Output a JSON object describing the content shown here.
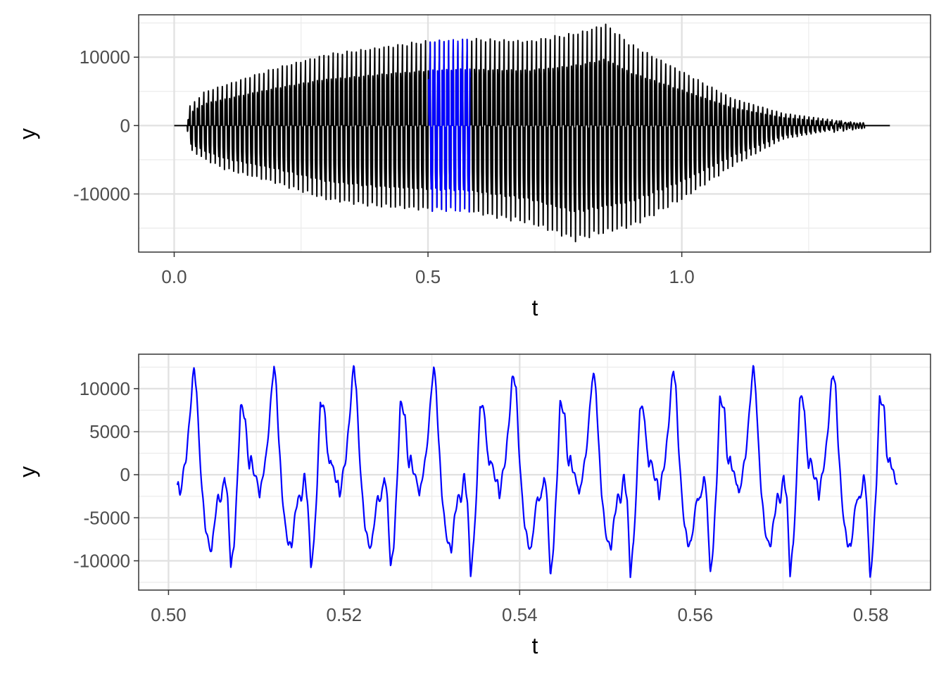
{
  "chart_data": [
    {
      "type": "line",
      "title": "",
      "xlabel": "t",
      "ylabel": "y",
      "xlim": [
        -0.07,
        1.49
      ],
      "ylim": [
        -18500,
        16200
      ],
      "x_ticks": [
        0.0,
        0.5,
        1.0
      ],
      "x_tick_labels": [
        "0.0",
        "0.5",
        "1.0"
      ],
      "y_ticks": [
        -10000,
        0,
        10000
      ],
      "y_tick_labels": [
        "-10000",
        "0",
        "10000"
      ],
      "grid": true,
      "legend": "none",
      "series": [
        {
          "color": "#000000",
          "description_of_shape": "speech-like oscillation from t=0.0 to t=1.41; silent until ~0.02, envelope grows to about +/-12000 near 0.45-0.55, peaks near +15000 around t=0.85 and -17000 around t=0.79, decays to near 0 by t=1.25, flat to 1.41",
          "envelope_upper": [
            [
              0.0,
              0
            ],
            [
              0.025,
              0
            ],
            [
              0.03,
              2800
            ],
            [
              0.06,
              5000
            ],
            [
              0.1,
              6000
            ],
            [
              0.2,
              8500
            ],
            [
              0.3,
              10500
            ],
            [
              0.4,
              11500
            ],
            [
              0.5,
              12500
            ],
            [
              0.58,
              12800
            ],
            [
              0.7,
              12500
            ],
            [
              0.8,
              13800
            ],
            [
              0.85,
              15000
            ],
            [
              0.9,
              12000
            ],
            [
              1.0,
              8000
            ],
            [
              1.1,
              4000
            ],
            [
              1.2,
              1800
            ],
            [
              1.3,
              800
            ],
            [
              1.36,
              0
            ],
            [
              1.41,
              0
            ]
          ],
          "envelope_lower": [
            [
              0.0,
              0
            ],
            [
              0.025,
              0
            ],
            [
              0.03,
              -3500
            ],
            [
              0.06,
              -5000
            ],
            [
              0.1,
              -6500
            ],
            [
              0.2,
              -8500
            ],
            [
              0.3,
              -11000
            ],
            [
              0.4,
              -12000
            ],
            [
              0.5,
              -12500
            ],
            [
              0.58,
              -12800
            ],
            [
              0.7,
              -14500
            ],
            [
              0.79,
              -17000
            ],
            [
              0.9,
              -15000
            ],
            [
              1.0,
              -11000
            ],
            [
              1.1,
              -6000
            ],
            [
              1.2,
              -2000
            ],
            [
              1.3,
              -600
            ],
            [
              1.36,
              0
            ],
            [
              1.41,
              0
            ]
          ]
        },
        {
          "color": "#0000ff",
          "description_of_shape": "highlighted segment t=0.501 to 0.583 (same waveform as bottom panel)",
          "x_range": [
            0.501,
            0.583
          ]
        }
      ]
    },
    {
      "type": "line",
      "title": "",
      "xlabel": "t",
      "ylabel": "y",
      "xlim": [
        0.4966,
        0.5868
      ],
      "ylim": [
        -13400,
        14000
      ],
      "x_ticks": [
        0.5,
        0.52,
        0.54,
        0.56,
        0.58
      ],
      "x_tick_labels": [
        "0.50",
        "0.52",
        "0.54",
        "0.56",
        "0.58"
      ],
      "y_ticks": [
        -10000,
        -5000,
        0,
        5000,
        10000
      ],
      "y_tick_labels": [
        "-10000",
        "-5000",
        "0",
        "5000",
        "10000"
      ],
      "grid": true,
      "legend": "none",
      "series": [
        {
          "color": "#0000ff",
          "x_start": 0.501,
          "x_end": 0.583,
          "period": 0.0091,
          "cycles": [
            {
              "t0": 0.5011,
              "peak1": 12300,
              "peak2": 8000,
              "trough1": -8900,
              "trough2": -10900
            },
            {
              "t0": 0.5102,
              "peak1": 12700,
              "peak2": 8500,
              "trough1": -8300,
              "trough2": -10700
            },
            {
              "t0": 0.5193,
              "peak1": 12800,
              "peak2": 8300,
              "trough1": -8400,
              "trough2": -11000
            },
            {
              "t0": 0.5284,
              "peak1": 12500,
              "peak2": 8300,
              "trough1": -8800,
              "trough2": -11600
            },
            {
              "t0": 0.5375,
              "peak1": 11500,
              "peak2": 8300,
              "trough1": -8800,
              "trough2": -12200
            },
            {
              "t0": 0.5466,
              "peak1": 11600,
              "peak2": 8100,
              "trough1": -8400,
              "trough2": -11600
            },
            {
              "t0": 0.5557,
              "peak1": 12400,
              "peak2": 8800,
              "trough1": -8000,
              "trough2": -11800
            },
            {
              "t0": 0.5648,
              "peak1": 12500,
              "peak2": 9200,
              "trough1": -8000,
              "trough2": -11600
            },
            {
              "t0": 0.5739,
              "peak1": 11800,
              "peak2": 8900,
              "trough1": -8500,
              "trough2": -12300
            },
            {
              "t0": 0.583,
              "peak1": 8800,
              "peak2": 8800,
              "trough1": -2000,
              "trough2": -2000
            }
          ]
        }
      ]
    }
  ]
}
